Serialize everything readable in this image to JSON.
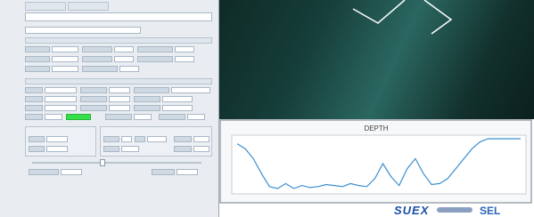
{
  "depth_panel": {
    "title": "DEPTH",
    "values": [
      5,
      10,
      20,
      35,
      48,
      50,
      45,
      50,
      47,
      49,
      48,
      46,
      47,
      48,
      45,
      47,
      48,
      40,
      25,
      38,
      47,
      30,
      20,
      35,
      46,
      45,
      40,
      30,
      20,
      10,
      3,
      0,
      0,
      0,
      0,
      0
    ]
  },
  "footer": {
    "brand": "SUEX",
    "partner": "SEL"
  }
}
